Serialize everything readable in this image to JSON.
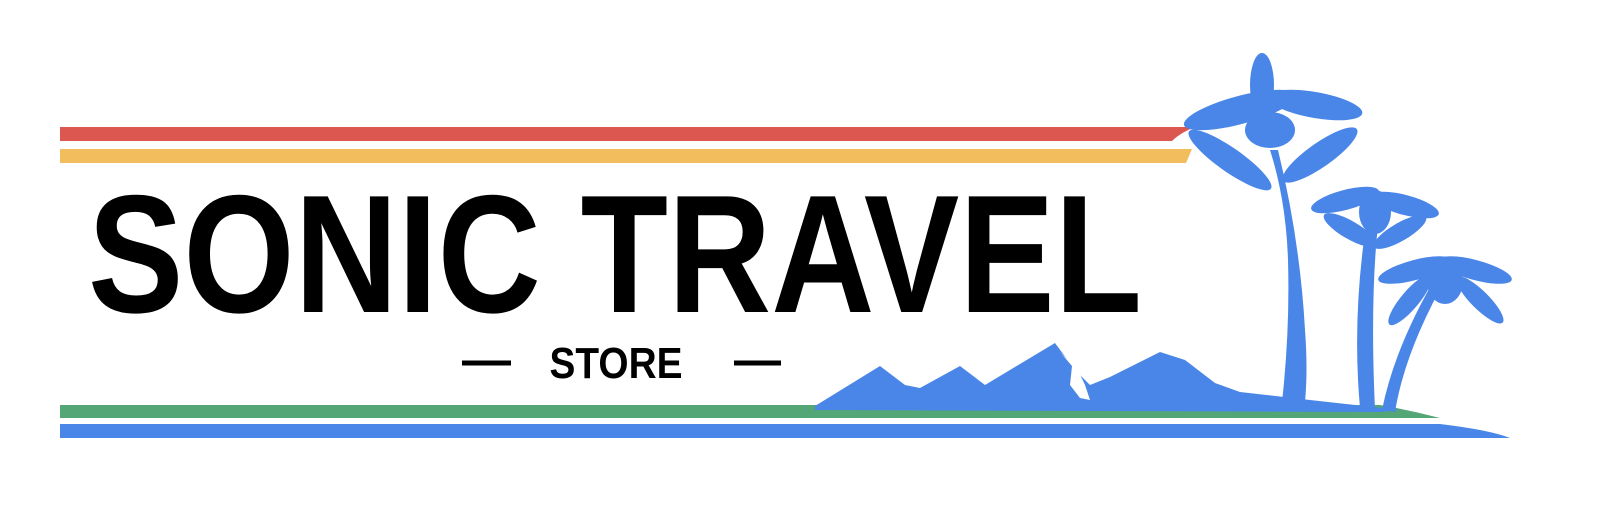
{
  "logo": {
    "title": "SONIC TRAVEL",
    "subtitle": "STORE"
  }
}
